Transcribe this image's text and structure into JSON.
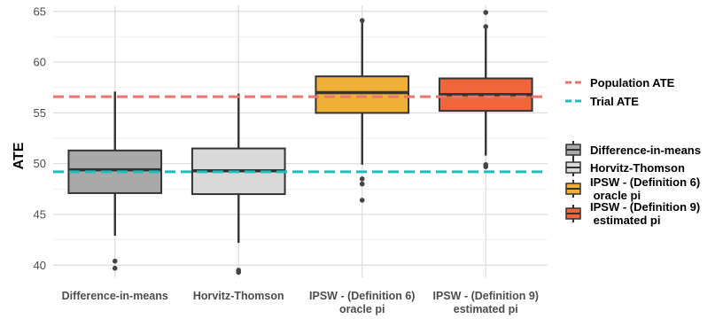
{
  "chart_data": {
    "type": "box",
    "ylabel": "ATE",
    "ylim": [
      38.8,
      65.6
    ],
    "yticks": [
      40,
      45,
      50,
      55,
      60,
      65
    ],
    "grid": true,
    "legend_position": "right",
    "categories": [
      {
        "lines": [
          "Difference-in-means"
        ]
      },
      {
        "lines": [
          "Horvitz-Thomson"
        ]
      },
      {
        "lines": [
          "IPSW - (Definition 6)",
          "oracle pi"
        ]
      },
      {
        "lines": [
          "IPSW - (Definition 9)",
          "estimated pi"
        ]
      }
    ],
    "boxes": [
      {
        "name": "Difference-in-means",
        "color": "#a9a9a9",
        "whisker_low": 42.9,
        "q1": 47.1,
        "median": 49.4,
        "q3": 51.3,
        "whisker_high": 57.1,
        "outliers": [
          40.4,
          39.7
        ]
      },
      {
        "name": "Horvitz-Thomson",
        "color": "#d9d9d9",
        "whisker_low": 42.2,
        "q1": 47.0,
        "median": 49.3,
        "q3": 51.5,
        "whisker_high": 56.9,
        "outliers": [
          39.5,
          39.3
        ]
      },
      {
        "name": "IPSW - (Definition 6) oracle pi",
        "color": "#f0b035",
        "whisker_low": 49.9,
        "q1": 55.0,
        "median": 57.0,
        "q3": 58.6,
        "whisker_high": 64.1,
        "outliers": [
          64.1,
          48.5,
          48.0,
          46.4
        ]
      },
      {
        "name": "IPSW - (Definition 9) estimated pi",
        "color": "#f2643a",
        "whisker_low": 50.8,
        "q1": 55.2,
        "median": 56.8,
        "q3": 58.4,
        "whisker_high": 63.4,
        "outliers": [
          64.9,
          63.5,
          49.9,
          49.7
        ]
      }
    ],
    "reference_lines": [
      {
        "name": "Population ATE",
        "value": 56.6,
        "color": "#e8756f"
      },
      {
        "name": "Trial ATE",
        "value": 49.2,
        "color": "#1fbdbd"
      }
    ],
    "legend_boxes": [
      {
        "lines": [
          "Difference-in-means"
        ],
        "color": "#a9a9a9"
      },
      {
        "lines": [
          "Horvitz-Thomson"
        ],
        "color": "#d9d9d9"
      },
      {
        "lines": [
          "IPSW - (Definition 6)",
          " oracle pi"
        ],
        "color": "#f0b035"
      },
      {
        "lines": [
          "IPSW - (Definition 9)",
          " estimated pi"
        ],
        "color": "#f2643a"
      }
    ]
  }
}
